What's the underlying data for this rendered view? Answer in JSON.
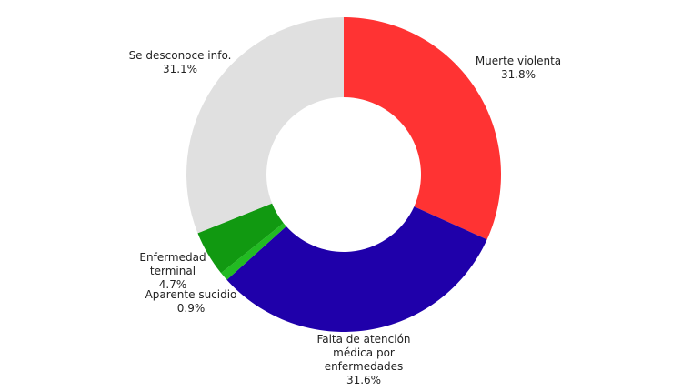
{
  "chart_data": {
    "type": "donut",
    "categories": [
      "Muerte violenta",
      "Falta de atención\nmédica por\nenfermedades",
      "Aparente sucidio",
      "Enfermedad\nterminal",
      "Se desconoce info."
    ],
    "values": [
      31.8,
      31.6,
      0.9,
      4.7,
      31.1
    ],
    "value_labels": [
      "31.8%",
      "31.6%",
      "0.9%",
      "4.7%",
      "31.1%"
    ],
    "colors": [
      "#ff3333",
      "#1f00aa",
      "#22bb22",
      "#119911",
      "#e0e0e0"
    ]
  }
}
